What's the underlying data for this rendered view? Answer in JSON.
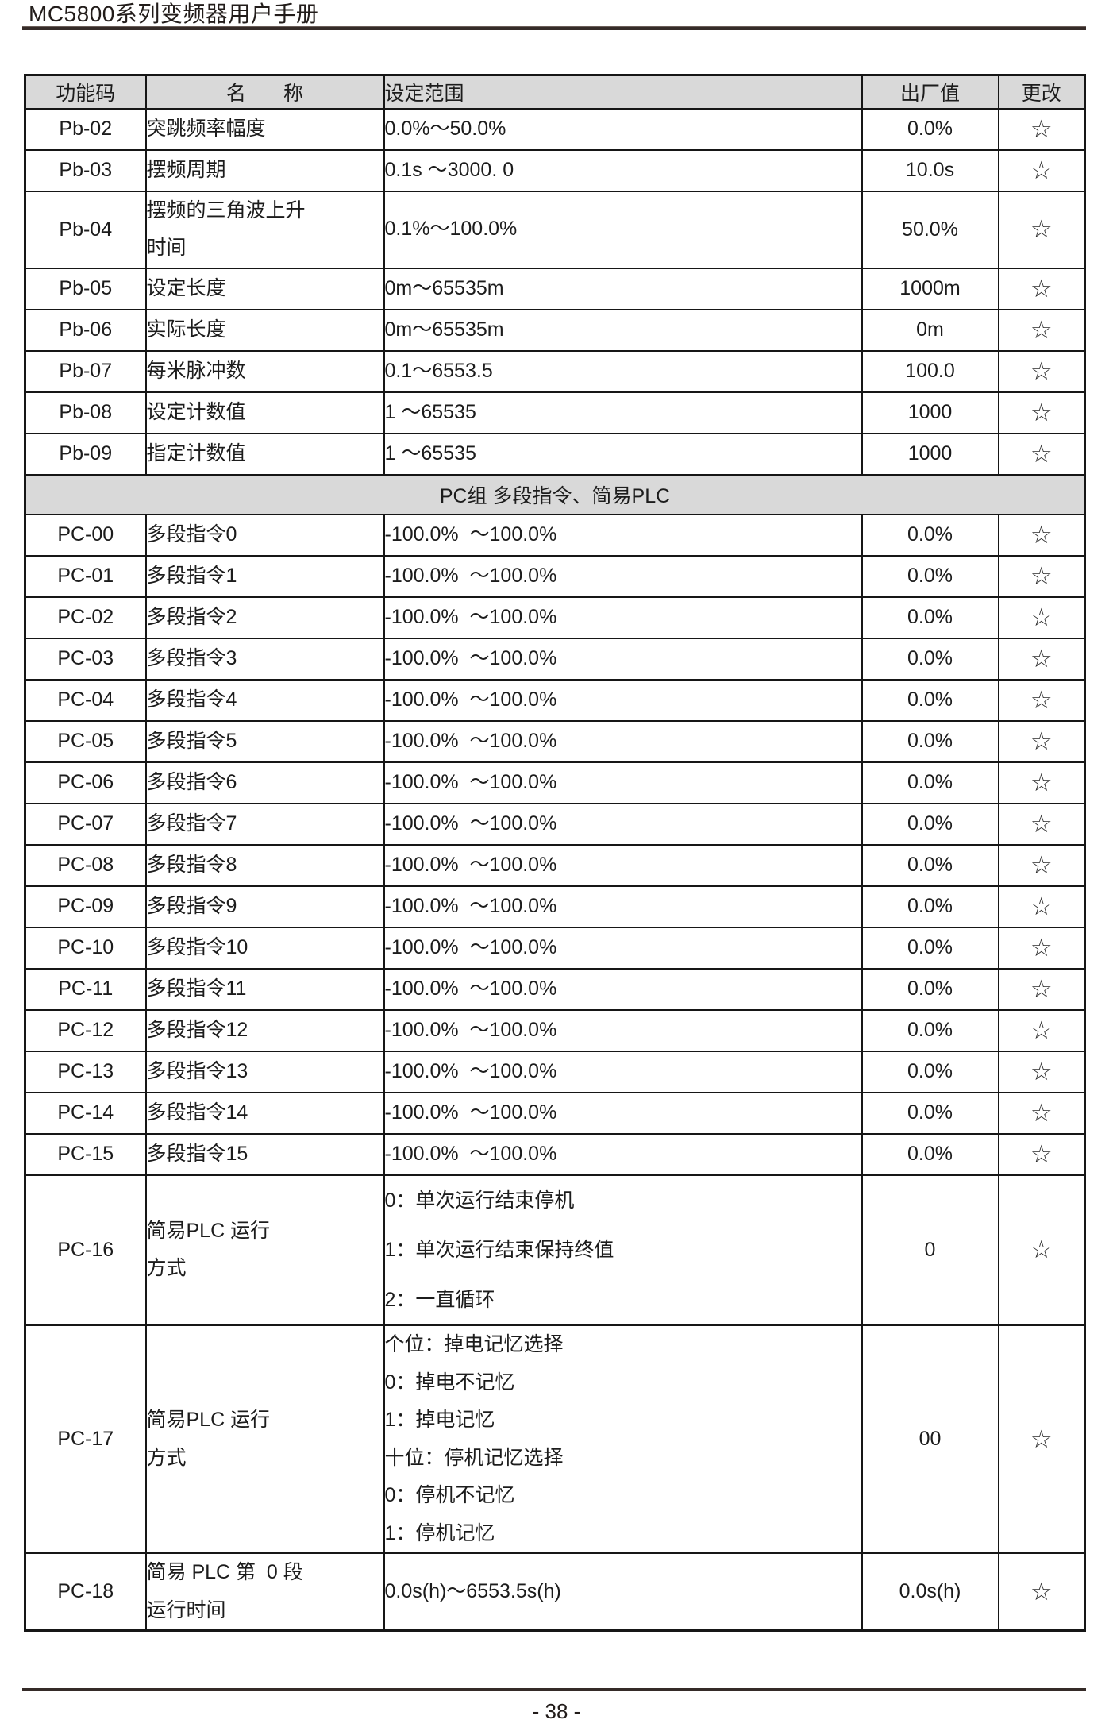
{
  "page": {
    "title": "MC5800系列变频器用户手册",
    "page_number": "- 38 -"
  },
  "table": {
    "headers": {
      "code": "功能码",
      "name": "名 称",
      "range": "设定范围",
      "default": "出厂值",
      "change": "更改"
    },
    "rows": [
      {
        "type": "normal",
        "code": "Pb-02",
        "name": "突跳频率幅度",
        "range": "0.0%～50.0%",
        "default": "0.0%",
        "change": "☆"
      },
      {
        "type": "normal",
        "code": "Pb-03",
        "name": "摆频周期",
        "range": "0.1s ～3000. 0",
        "default": "10.0s",
        "change": "☆"
      },
      {
        "type": "normal",
        "code": "Pb-04",
        "name": "摆频的三角波上升\n时间",
        "range": "0.1%～100.0%",
        "default": "50.0%",
        "change": "☆"
      },
      {
        "type": "normal",
        "code": "Pb-05",
        "name": "设定长度",
        "range": "0m～65535m",
        "default": "1000m",
        "change": "☆"
      },
      {
        "type": "normal",
        "code": "Pb-06",
        "name": "实际长度",
        "range": "0m～65535m",
        "default": "0m",
        "change": "☆"
      },
      {
        "type": "normal",
        "code": "Pb-07",
        "name": "每米脉冲数",
        "range": "0.1～6553.5",
        "default": "100.0",
        "change": "☆"
      },
      {
        "type": "normal",
        "code": "Pb-08",
        "name": "设定计数值",
        "range": "1 ～65535",
        "default": "1000",
        "change": "☆"
      },
      {
        "type": "normal",
        "code": "Pb-09",
        "name": "指定计数值",
        "range": "1 ～65535",
        "default": "1000",
        "change": "☆"
      },
      {
        "type": "section",
        "label": "PC组 多段指令、简易PLC"
      },
      {
        "type": "normal",
        "code": "PC-00",
        "name": "多段指令0",
        "range": "-100.0%  ～100.0%",
        "default": "0.0%",
        "change": "☆"
      },
      {
        "type": "normal",
        "code": "PC-01",
        "name": "多段指令1",
        "range": "-100.0%  ～100.0%",
        "default": "0.0%",
        "change": "☆"
      },
      {
        "type": "normal",
        "code": "PC-02",
        "name": "多段指令2",
        "range": "-100.0%  ～100.0%",
        "default": "0.0%",
        "change": "☆"
      },
      {
        "type": "normal",
        "code": "PC-03",
        "name": "多段指令3",
        "range": "-100.0%  ～100.0%",
        "default": "0.0%",
        "change": "☆"
      },
      {
        "type": "normal",
        "code": "PC-04",
        "name": "多段指令4",
        "range": "-100.0%  ～100.0%",
        "default": "0.0%",
        "change": "☆"
      },
      {
        "type": "normal",
        "code": "PC-05",
        "name": "多段指令5",
        "range": "-100.0%  ～100.0%",
        "default": "0.0%",
        "change": "☆"
      },
      {
        "type": "normal",
        "code": "PC-06",
        "name": "多段指令6",
        "range": "-100.0%  ～100.0%",
        "default": "0.0%",
        "change": "☆"
      },
      {
        "type": "normal",
        "code": "PC-07",
        "name": "多段指令7",
        "range": "-100.0%  ～100.0%",
        "default": "0.0%",
        "change": "☆"
      },
      {
        "type": "normal",
        "code": "PC-08",
        "name": "多段指令8",
        "range": "-100.0%  ～100.0%",
        "default": "0.0%",
        "change": "☆"
      },
      {
        "type": "normal",
        "code": "PC-09",
        "name": "多段指令9",
        "range": "-100.0%  ～100.0%",
        "default": "0.0%",
        "change": "☆"
      },
      {
        "type": "normal",
        "code": "PC-10",
        "name": "多段指令10",
        "range": "-100.0%  ～100.0%",
        "default": "0.0%",
        "change": "☆"
      },
      {
        "type": "normal",
        "code": "PC-11",
        "name": "多段指令11",
        "range": "-100.0%  ～100.0%",
        "default": "0.0%",
        "change": "☆"
      },
      {
        "type": "normal",
        "code": "PC-12",
        "name": "多段指令12",
        "range": "-100.0%  ～100.0%",
        "default": "0.0%",
        "change": "☆"
      },
      {
        "type": "normal",
        "code": "PC-13",
        "name": "多段指令13",
        "range": "-100.0%  ～100.0%",
        "default": "0.0%",
        "change": "☆"
      },
      {
        "type": "normal",
        "code": "PC-14",
        "name": "多段指令14",
        "range": "-100.0%  ～100.0%",
        "default": "0.0%",
        "change": "☆"
      },
      {
        "type": "normal",
        "code": "PC-15",
        "name": "多段指令15",
        "range": "-100.0%  ～100.0%",
        "default": "0.0%",
        "change": "☆"
      },
      {
        "type": "normal",
        "loose": true,
        "code": "PC-16",
        "name": "简易PLC 运行\n方式",
        "range": "0：单次运行结束停机\n1：单次运行结束保持终值\n2：一直循环",
        "default": "0",
        "change": "☆"
      },
      {
        "type": "normal",
        "code": "PC-17",
        "name": "简易PLC 运行\n方式",
        "range": "个位：掉电记忆选择\n0：掉电不记忆\n1：掉电记忆\n十位：停机记忆选择\n0：停机不记忆\n1：停机记忆",
        "default": "00",
        "change": "☆"
      },
      {
        "type": "normal",
        "code": "PC-18",
        "name": "简易 PLC 第  0 段\n运行时间",
        "range": "0.0s(h)～6553.5s(h)",
        "default": "0.0s(h)",
        "change": "☆"
      }
    ]
  }
}
